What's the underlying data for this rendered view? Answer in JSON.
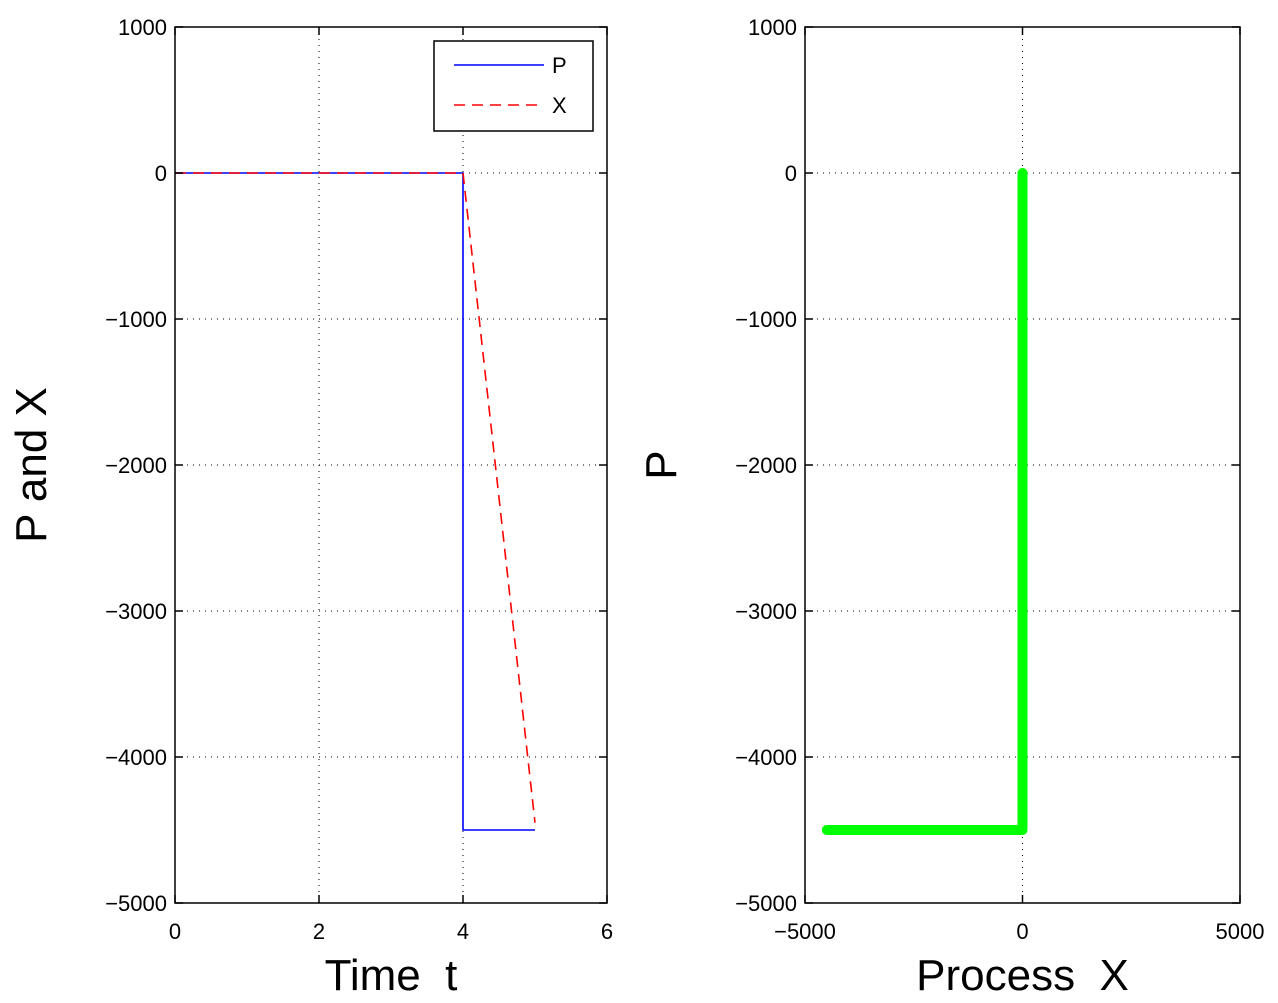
{
  "chart_data": [
    {
      "type": "line",
      "xlabel": "Time  t",
      "ylabel": "P and X",
      "xlim": [
        0,
        6
      ],
      "ylim": [
        -5000,
        1000
      ],
      "xticks": [
        0,
        2,
        4,
        6
      ],
      "yticks": [
        1000,
        0,
        -1000,
        -2000,
        -3000,
        -4000,
        -5000
      ],
      "xtick_labels": [
        "0",
        "2",
        "4",
        "6"
      ],
      "ytick_labels": [
        "1000",
        "0",
        "−1000",
        "−2000",
        "−3000",
        "−4000",
        "−5000"
      ],
      "grid": true,
      "legend_position": "top-right",
      "series": [
        {
          "name": "P",
          "color": "#0000ff",
          "style": "solid",
          "x": [
            0,
            4,
            4,
            5
          ],
          "y": [
            0,
            0,
            -4500,
            -4500
          ]
        },
        {
          "name": "X",
          "color": "#ff0000",
          "style": "dashed",
          "x": [
            0,
            4,
            5
          ],
          "y": [
            0,
            0,
            -4450
          ]
        }
      ]
    },
    {
      "type": "line",
      "xlabel": "Process  X",
      "ylabel": "P",
      "xlim": [
        -5000,
        5000
      ],
      "ylim": [
        -5000,
        1000
      ],
      "xticks": [
        -5000,
        0,
        5000
      ],
      "yticks": [
        1000,
        0,
        -1000,
        -2000,
        -3000,
        -4000,
        -5000
      ],
      "xtick_labels": [
        "−5000",
        "0",
        "5000"
      ],
      "ytick_labels": [
        "1000",
        "0",
        "−1000",
        "−2000",
        "−3000",
        "−4000",
        "−5000"
      ],
      "grid": true,
      "series": [
        {
          "color": "#00ff00",
          "style": "solid-thick",
          "x": [
            0,
            0,
            0,
            -4500
          ],
          "y": [
            0,
            0,
            -4500,
            -4500
          ]
        }
      ]
    }
  ]
}
